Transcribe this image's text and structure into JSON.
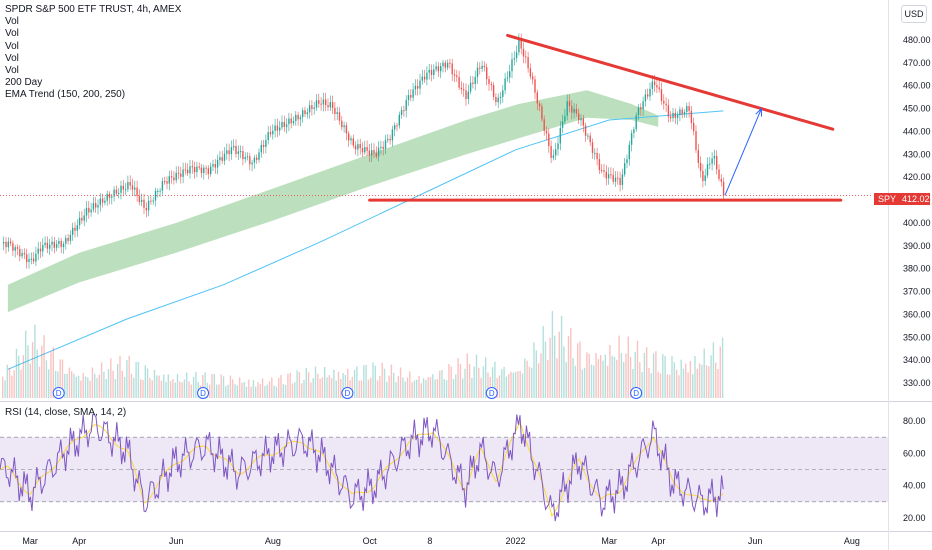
{
  "header": {
    "title": "SPDR S&P 500 ETF TRUST, 4h, AMEX",
    "indicators": [
      "Vol",
      "Vol",
      "Vol",
      "Vol",
      "Vol",
      "200 Day",
      "EMA Trend (150, 200, 250)"
    ],
    "currency": "USD"
  },
  "last_price": {
    "symbol": "SPY",
    "value": "412.02"
  },
  "rsi_panel": {
    "label": "RSI (14, close, SMA, 14, 2)"
  },
  "colors": {
    "up": "#26a69a",
    "down": "#ef5350",
    "resistance": "#e53935",
    "ema_band": "#a5d6a7",
    "ma200": "#4fc3f7",
    "rsi": "#7e57c2",
    "rsi_sma": "#fdd835",
    "rsi_band": "#ede7f6",
    "dividend": "#2962ff"
  },
  "chart_data": {
    "type": "line",
    "title": "SPDR S&P 500 ETF TRUST, 4h, AMEX",
    "x_ticks": [
      "Mar",
      "Apr",
      "Jun",
      "Aug",
      "Oct",
      "8",
      "2022",
      "Mar",
      "Apr",
      "Jun",
      "Aug"
    ],
    "price_axis": {
      "range": [
        325,
        487
      ],
      "ticks": [
        330,
        340,
        350,
        360,
        370,
        380,
        390,
        400,
        410,
        420,
        430,
        440,
        450,
        460,
        470,
        480
      ]
    },
    "price_series": {
      "name": "SPY",
      "x": [
        "2021-02-15",
        "2021-03-01",
        "2021-03-08",
        "2021-03-22",
        "2021-04-05",
        "2021-04-20",
        "2021-05-03",
        "2021-05-12",
        "2021-05-24",
        "2021-06-10",
        "2021-06-21",
        "2021-07-06",
        "2021-07-19",
        "2021-07-30",
        "2021-08-16",
        "2021-08-30",
        "2021-09-07",
        "2021-09-20",
        "2021-10-04",
        "2021-10-13",
        "2021-10-25",
        "2021-11-05",
        "2021-11-19",
        "2021-11-30",
        "2021-12-10",
        "2021-12-20",
        "2022-01-03",
        "2022-01-10",
        "2022-01-24",
        "2022-02-02",
        "2022-02-10",
        "2022-02-24",
        "2022-03-08",
        "2022-03-18",
        "2022-03-29",
        "2022-04-08",
        "2022-04-20",
        "2022-04-28",
        "2022-05-05",
        "2022-05-12"
      ],
      "y": [
        391,
        383,
        390,
        391,
        405,
        412,
        417,
        406,
        418,
        424,
        423,
        433,
        426,
        440,
        446,
        453,
        451,
        434,
        430,
        437,
        455,
        465,
        470,
        455,
        470,
        452,
        479,
        465,
        427,
        452,
        446,
        422,
        418,
        448,
        462,
        446,
        450,
        418,
        430,
        412
      ]
    },
    "ema_trend_band": {
      "x": [
        "2021-02-15",
        "2021-04-01",
        "2021-06-01",
        "2021-08-01",
        "2021-10-01",
        "2021-12-01",
        "2022-01-03",
        "2022-02-15",
        "2022-03-15",
        "2022-04-01"
      ],
      "upper": [
        373,
        387,
        400,
        415,
        430,
        445,
        452,
        458,
        452,
        447
      ],
      "lower": [
        361,
        374,
        387,
        401,
        416,
        430,
        437,
        446,
        445,
        442
      ]
    },
    "ma200": {
      "x": [
        "2021-02-15",
        "2021-05-01",
        "2021-07-01",
        "2021-09-01",
        "2021-11-01",
        "2022-01-01",
        "2022-03-01",
        "2022-05-12"
      ],
      "y": [
        336,
        358,
        373,
        392,
        412,
        432,
        445,
        449
      ]
    },
    "annotations": {
      "descending_resistance": {
        "x": [
          "2021-12-27",
          "2022-07-20"
        ],
        "y": [
          482,
          441
        ]
      },
      "horizontal_support": {
        "x": [
          "2021-10-01",
          "2022-07-25"
        ],
        "y": 410
      },
      "projection_arrow": {
        "x": [
          "2022-05-13",
          "2022-06-05"
        ],
        "y": [
          412,
          450
        ]
      },
      "dividend_markers": [
        "2021-03-19",
        "2021-06-18",
        "2021-09-17",
        "2021-12-17",
        "2022-03-18"
      ]
    },
    "volume": {
      "x": [
        "2021-02-15",
        "2021-03-01",
        "2021-04-01",
        "2021-05-01",
        "2021-06-01",
        "2021-07-01",
        "2021-08-01",
        "2021-09-01",
        "2021-10-01",
        "2021-11-01",
        "2021-12-01",
        "2022-01-01",
        "2022-01-25",
        "2022-02-15",
        "2022-03-07",
        "2022-03-25",
        "2022-04-15",
        "2022-05-12"
      ],
      "values": [
        30,
        60,
        25,
        35,
        22,
        20,
        18,
        28,
        30,
        22,
        35,
        30,
        70,
        45,
        55,
        40,
        38,
        50
      ]
    },
    "rsi": {
      "axis": {
        "range": [
          15,
          85
        ],
        "ticks": [
          20,
          40,
          60,
          80
        ]
      },
      "overbought": 70,
      "midline": 50,
      "oversold": 30,
      "x": [
        "2021-02-15",
        "2021-03-01",
        "2021-03-22",
        "2021-04-10",
        "2021-05-01",
        "2021-05-12",
        "2021-06-01",
        "2021-06-20",
        "2021-07-10",
        "2021-07-30",
        "2021-08-20",
        "2021-09-01",
        "2021-09-20",
        "2021-10-04",
        "2021-10-25",
        "2021-11-10",
        "2021-11-30",
        "2021-12-10",
        "2021-12-20",
        "2022-01-04",
        "2022-01-24",
        "2022-02-10",
        "2022-02-24",
        "2022-03-08",
        "2022-03-29",
        "2022-04-10",
        "2022-04-28",
        "2022-05-12"
      ],
      "y": [
        50,
        35,
        60,
        78,
        62,
        30,
        55,
        65,
        48,
        60,
        68,
        58,
        33,
        40,
        66,
        75,
        38,
        62,
        44,
        80,
        22,
        56,
        30,
        38,
        72,
        42,
        30,
        35
      ]
    }
  }
}
